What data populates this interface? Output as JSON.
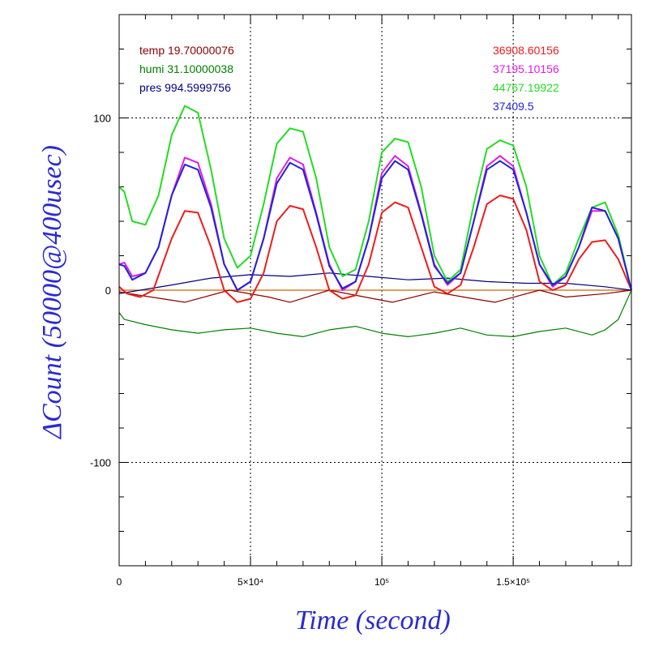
{
  "chart_data": {
    "type": "line",
    "xlabel": "Time (second)",
    "ylabel": "ΔCount (50000@400usec)",
    "xlim": [
      0,
      195000
    ],
    "ylim": [
      -160,
      160
    ],
    "grid": true,
    "x_ticks": [
      {
        "value": 0,
        "label": "0"
      },
      {
        "value": 50000,
        "label": "5×10⁴"
      },
      {
        "value": 100000,
        "label": "10⁵"
      },
      {
        "value": 150000,
        "label": "1.5×10⁵"
      }
    ],
    "y_ticks": [
      {
        "value": -100,
        "label": "-100"
      },
      {
        "value": 0,
        "label": "0"
      },
      {
        "value": 100,
        "label": "100"
      }
    ],
    "legend_left": [
      {
        "text": "temp 19.70000076",
        "color": "#8b0000"
      },
      {
        "text": "humi 31.10000038",
        "color": "#008000"
      },
      {
        "text": "pres 994.5999756",
        "color": "#000080"
      }
    ],
    "legend_right": [
      {
        "text": "36908.60156",
        "color": "#ee1c1c"
      },
      {
        "text": "37195.10156",
        "color": "#e01ee0"
      },
      {
        "text": "44767.19922",
        "color": "#22dd22"
      },
      {
        "text": "37409.5",
        "color": "#2222dd"
      }
    ],
    "series": [
      {
        "color": "#8b0000",
        "x": [
          0,
          8000,
          25000,
          42000,
          57000,
          65000,
          80000,
          97000,
          104000,
          120000,
          135000,
          143000,
          160000,
          170000,
          185000,
          195000
        ],
        "y": [
          -1,
          -3,
          -7,
          0,
          -4,
          -7,
          0,
          -5,
          -7,
          -1,
          -5,
          -7,
          0,
          -4,
          -2,
          0
        ]
      },
      {
        "color": "#008000",
        "x": [
          0,
          2000,
          10000,
          20000,
          30000,
          40000,
          50000,
          60000,
          70000,
          80000,
          90000,
          100000,
          110000,
          120000,
          130000,
          140000,
          150000,
          160000,
          170000,
          180000,
          185000,
          190000,
          195000
        ],
        "y": [
          -13,
          -17,
          -20,
          -23,
          -25,
          -23,
          -22,
          -25,
          -27,
          -23,
          -21,
          -25,
          -27,
          -25,
          -22,
          -26,
          -27,
          -24,
          -22,
          -26,
          -23,
          -17,
          0
        ]
      },
      {
        "color": "#000080",
        "x": [
          0,
          8000,
          20000,
          35000,
          50000,
          65000,
          80000,
          95000,
          110000,
          125000,
          140000,
          155000,
          170000,
          185000,
          195000
        ],
        "y": [
          -2,
          0,
          3,
          7,
          9,
          8,
          10,
          8,
          6,
          7,
          5,
          4,
          4,
          2,
          0
        ]
      },
      {
        "color": "#ee1c1c",
        "x": [
          0,
          3000,
          8000,
          13000,
          20000,
          25000,
          30000,
          35000,
          40000,
          45000,
          50000,
          55000,
          60000,
          65000,
          70000,
          75000,
          80000,
          85000,
          90000,
          95000,
          100000,
          105000,
          110000,
          115000,
          120000,
          125000,
          130000,
          135000,
          140000,
          145000,
          150000,
          155000,
          160000,
          165000,
          170000,
          175000,
          180000,
          185000,
          190000,
          195000
        ],
        "y": [
          2,
          -2,
          -4,
          0,
          30,
          46,
          45,
          25,
          0,
          -7,
          -5,
          10,
          40,
          49,
          47,
          25,
          0,
          -5,
          -3,
          15,
          45,
          51,
          48,
          25,
          2,
          -2,
          3,
          25,
          50,
          55,
          53,
          35,
          5,
          0,
          3,
          18,
          28,
          29,
          18,
          0
        ]
      },
      {
        "color": "#e01ee0",
        "x": [
          0,
          2000,
          5000,
          10000,
          15000,
          20000,
          25000,
          30000,
          35000,
          40000,
          45000,
          50000,
          55000,
          60000,
          65000,
          70000,
          75000,
          80000,
          85000,
          90000,
          95000,
          100000,
          105000,
          110000,
          115000,
          120000,
          125000,
          130000,
          135000,
          140000,
          145000,
          150000,
          155000,
          160000,
          165000,
          170000,
          175000,
          180000,
          185000,
          190000,
          195000
        ],
        "y": [
          15,
          16,
          8,
          10,
          25,
          55,
          77,
          74,
          50,
          15,
          0,
          5,
          30,
          65,
          77,
          73,
          45,
          15,
          0,
          5,
          30,
          68,
          78,
          72,
          45,
          15,
          3,
          10,
          40,
          72,
          78,
          72,
          45,
          15,
          2,
          8,
          25,
          46,
          46,
          30,
          0
        ]
      },
      {
        "color": "#22dd22",
        "x": [
          0,
          2000,
          5000,
          10000,
          15000,
          20000,
          25000,
          30000,
          35000,
          40000,
          45000,
          50000,
          55000,
          60000,
          65000,
          70000,
          75000,
          80000,
          85000,
          90000,
          95000,
          100000,
          105000,
          110000,
          115000,
          120000,
          125000,
          130000,
          135000,
          140000,
          145000,
          150000,
          155000,
          160000,
          165000,
          170000,
          175000,
          180000,
          185000,
          190000,
          195000
        ],
        "y": [
          60,
          57,
          40,
          38,
          55,
          90,
          107,
          103,
          70,
          30,
          13,
          20,
          50,
          85,
          94,
          92,
          65,
          25,
          8,
          12,
          40,
          80,
          88,
          86,
          60,
          20,
          5,
          12,
          50,
          82,
          87,
          84,
          60,
          20,
          3,
          10,
          30,
          48,
          51,
          32,
          0
        ]
      },
      {
        "color": "#2222dd",
        "x": [
          0,
          2000,
          5000,
          10000,
          15000,
          20000,
          25000,
          30000,
          35000,
          40000,
          45000,
          50000,
          55000,
          60000,
          65000,
          70000,
          75000,
          80000,
          85000,
          90000,
          95000,
          100000,
          105000,
          110000,
          115000,
          120000,
          125000,
          130000,
          135000,
          140000,
          145000,
          150000,
          155000,
          160000,
          165000,
          170000,
          175000,
          180000,
          185000,
          190000,
          195000
        ],
        "y": [
          15,
          14,
          6,
          10,
          25,
          55,
          73,
          70,
          48,
          15,
          0,
          5,
          30,
          62,
          74,
          70,
          44,
          14,
          1,
          5,
          30,
          65,
          75,
          70,
          44,
          14,
          4,
          10,
          40,
          70,
          75,
          70,
          45,
          15,
          3,
          8,
          25,
          48,
          46,
          30,
          0
        ]
      }
    ],
    "reference_lines": [
      {
        "y": 0,
        "color": "#cc6600"
      }
    ]
  }
}
